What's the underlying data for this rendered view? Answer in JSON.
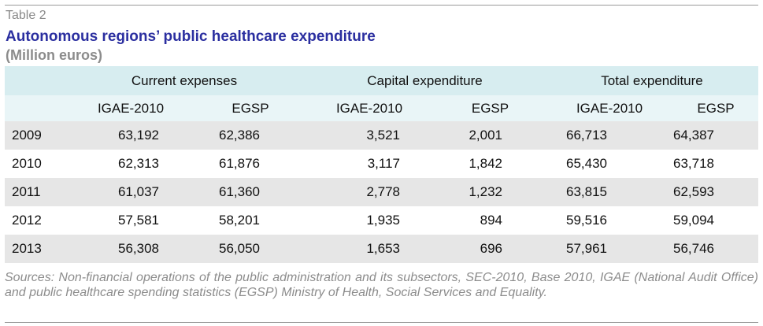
{
  "table_label": "Table 2",
  "title": "Autonomous regions’ public healthcare expenditure",
  "subtitle": "(Million euros)",
  "groups": [
    "Current expenses",
    "Capital expenditure",
    "Total expenditure"
  ],
  "subheaders": [
    "IGAE-2010",
    "EGSP",
    "IGAE-2010",
    "EGSP",
    "IGAE-2010",
    "EGSP"
  ],
  "rows": [
    {
      "year": "2009",
      "values": [
        "63,192",
        "62,386",
        "3,521",
        "2,001",
        "66,713",
        "64,387"
      ]
    },
    {
      "year": "2010",
      "values": [
        "62,313",
        "61,876",
        "3,117",
        "1,842",
        "65,430",
        "63,718"
      ]
    },
    {
      "year": "2011",
      "values": [
        "61,037",
        "61,360",
        "2,778",
        "1,232",
        "63,815",
        "62,593"
      ]
    },
    {
      "year": "2012",
      "values": [
        "57,581",
        "58,201",
        "1,935",
        "894",
        "59,516",
        "59,094"
      ]
    },
    {
      "year": "2013",
      "values": [
        "56,308",
        "56,050",
        "1,653",
        "696",
        "57,961",
        "56,746"
      ]
    }
  ],
  "sources": "Sources: Non-financial operations of the public administration and its subsectors, SEC-2010, Base 2010, IGAE (National Audit Office) and public healthcare spending statistics (EGSP) Ministry of Health, Social Services and Equality.",
  "colors": {
    "title": "#2b2fa0",
    "header_band": "#d7edf0",
    "subheader_band": "#e9f5f7",
    "row_alt": "#e6e6e6",
    "muted_text": "#8c8c8c"
  }
}
